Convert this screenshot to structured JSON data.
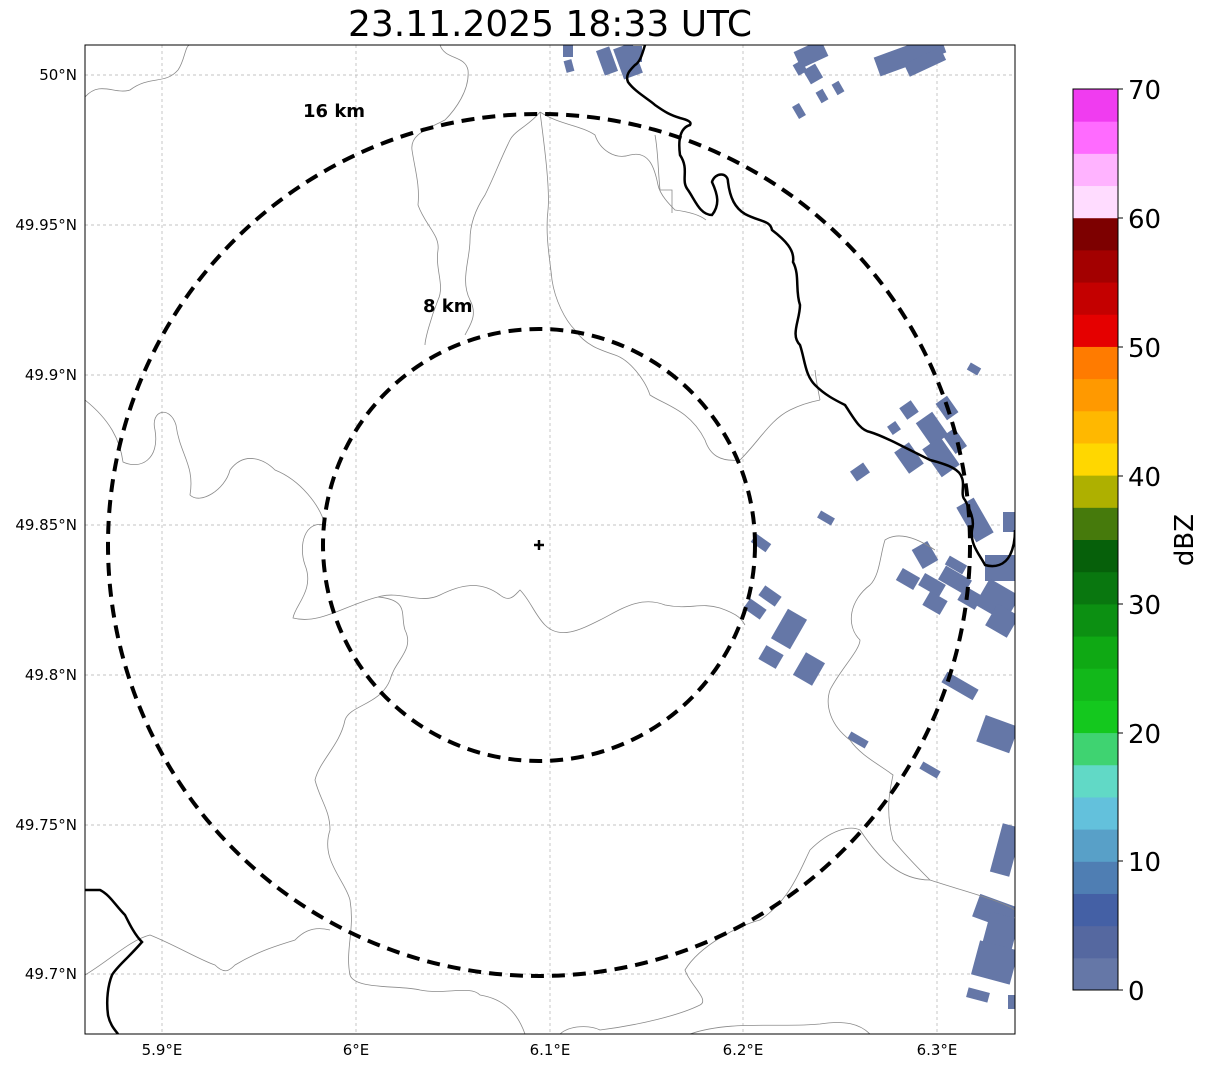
{
  "title": "23.11.2025 18:33 UTC",
  "map": {
    "lat_ticks": [
      "50°N",
      "49.95°N",
      "49.9°N",
      "49.85°N",
      "49.8°N",
      "49.75°N",
      "49.7°N"
    ],
    "lon_ticks": [
      "5.9°E",
      "6°E",
      "6.1°E",
      "6.2°E",
      "6.3°E"
    ],
    "range_rings": [
      {
        "label": "16 km",
        "radius_km": 16
      },
      {
        "label": "8 km",
        "radius_km": 8
      }
    ],
    "radar_marker": "plus-marker",
    "echo_color": "#6577a7"
  },
  "colorbar": {
    "label": "dBZ",
    "ticks": [
      "0",
      "10",
      "20",
      "30",
      "40",
      "50",
      "60",
      "70"
    ],
    "colors": [
      "#6577a7",
      "#5568a0",
      "#4460a5",
      "#4f7eb3",
      "#58a0c8",
      "#63c1dc",
      "#61d9c6",
      "#3fd371",
      "#14c81e",
      "#12b81a",
      "#0fa914",
      "#0c9012",
      "#09770f",
      "#06600a",
      "#467a0c",
      "#aeb000",
      "#ffd700",
      "#ffb800",
      "#ff9900",
      "#ff7b00",
      "#e50000",
      "#c40000",
      "#a30000",
      "#7d0000",
      "#ffdcff",
      "#ffb3ff",
      "#ff6bff",
      "#f03cf0"
    ]
  }
}
